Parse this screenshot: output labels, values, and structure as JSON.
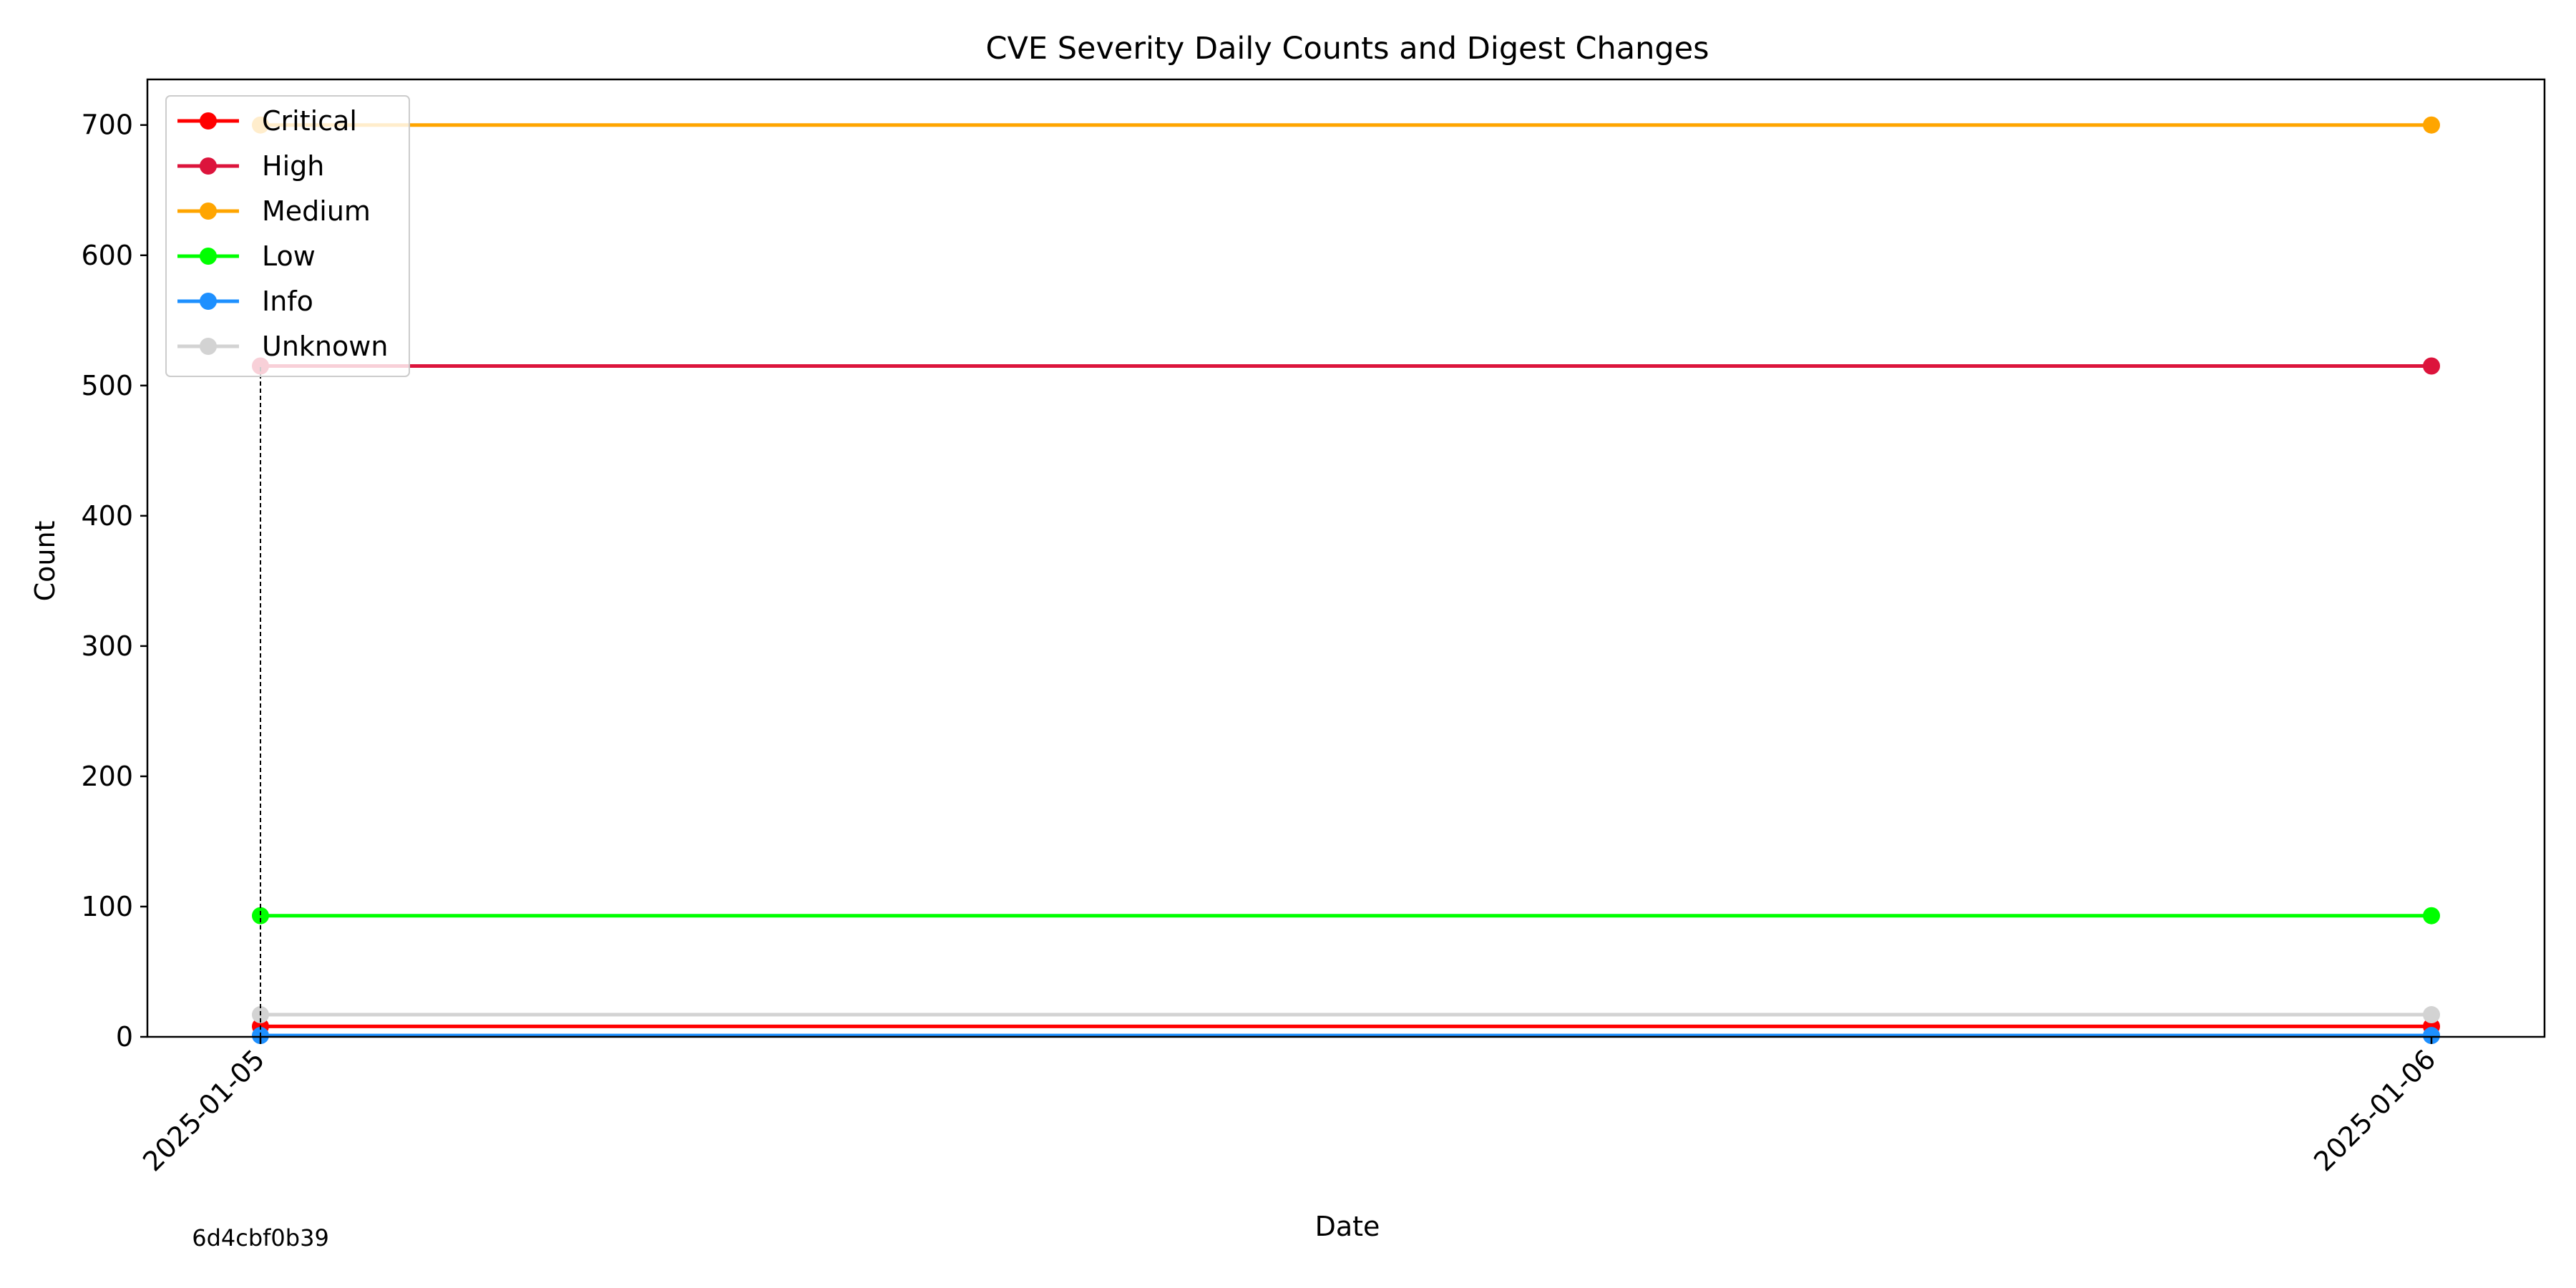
{
  "chart_data": {
    "type": "line",
    "title": "CVE Severity Daily Counts and Digest Changes",
    "xlabel": "Date",
    "ylabel": "Count",
    "x": [
      "2025-01-05",
      "2025-01-06"
    ],
    "ylim": [
      0,
      735
    ],
    "yticks": [
      0,
      100,
      200,
      300,
      400,
      500,
      600,
      700
    ],
    "grid": false,
    "legend_position": "top-left",
    "series": [
      {
        "name": "Critical",
        "color": "#ff0000",
        "values": [
          8,
          8
        ]
      },
      {
        "name": "High",
        "color": "#dc143c",
        "values": [
          515,
          515
        ]
      },
      {
        "name": "Medium",
        "color": "#ffa500",
        "values": [
          700,
          700
        ]
      },
      {
        "name": "Low",
        "color": "#00ff00",
        "values": [
          93,
          93
        ]
      },
      {
        "name": "Info",
        "color": "#1e90ff",
        "values": [
          1,
          1
        ]
      },
      {
        "name": "Unknown",
        "color": "#d3d3d3",
        "values": [
          17,
          17
        ]
      }
    ],
    "annotations": [
      {
        "type": "digest_change",
        "x": "2025-01-05",
        "label": "6d4cbf0b39"
      }
    ]
  }
}
